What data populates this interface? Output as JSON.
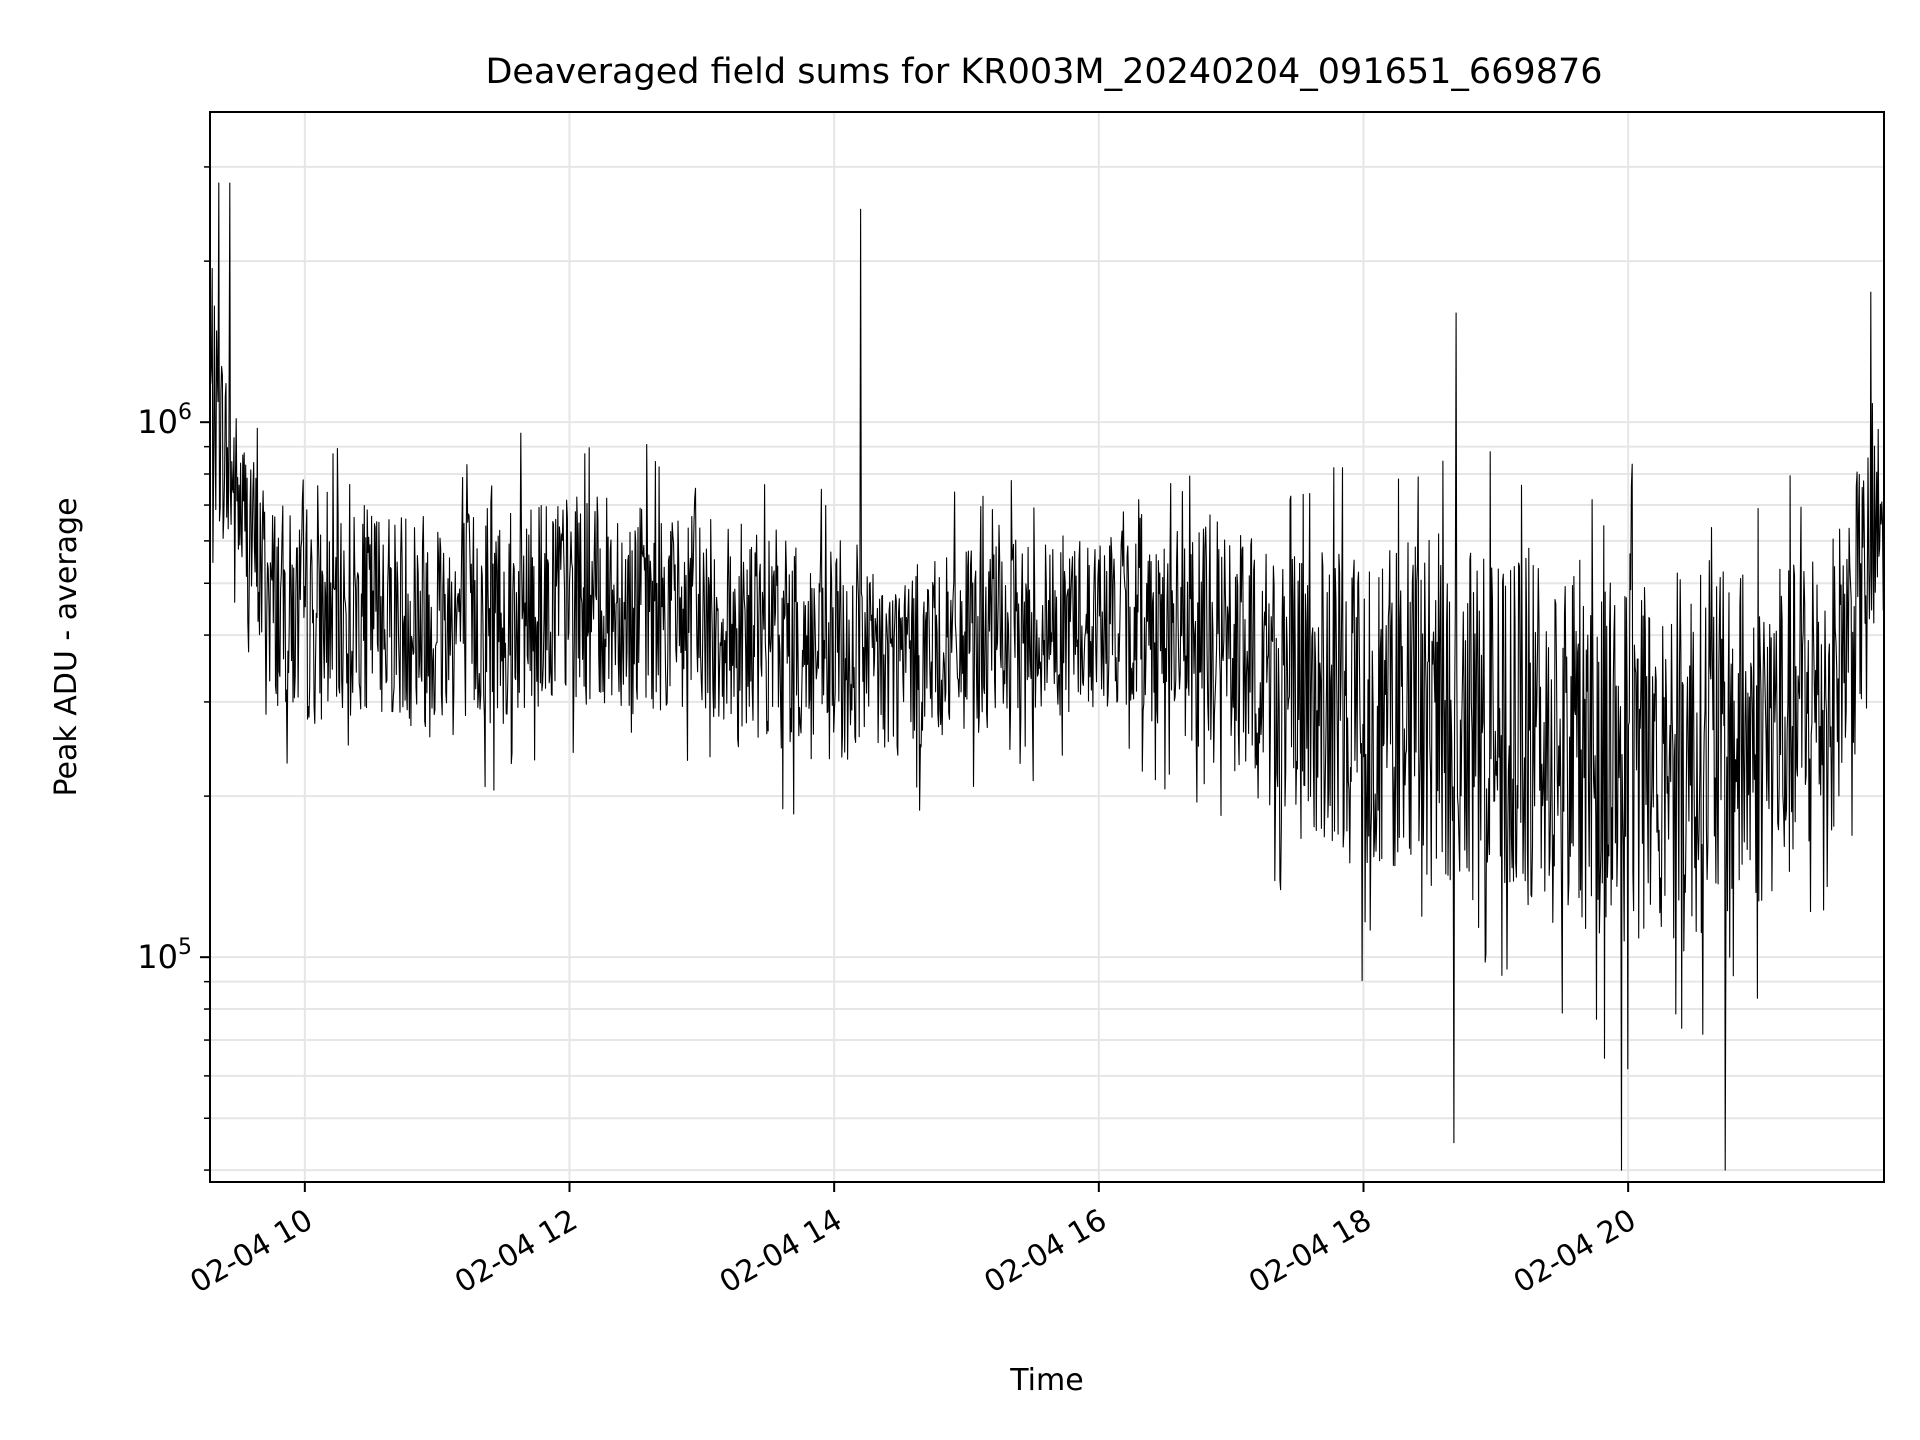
{
  "chart_data": {
    "type": "line",
    "title": "Deaveraged field sums for KR003M_20240204_091651_669876",
    "xlabel": "Time",
    "ylabel": "Peak ADU - average",
    "yscale": "log",
    "xlim": [
      "2024-02-04 09:17",
      "2024-02-04 21:56"
    ],
    "ylim": [
      38000,
      3800000
    ],
    "grid": true,
    "line_color": "#000000",
    "grid_color": "#e6e6e6",
    "x_tick_labels": [
      "02-04 10",
      "02-04 12",
      "02-04 14",
      "02-04 16",
      "02-04 18",
      "02-04 20"
    ],
    "x_tick_times": [
      "2024-02-04 10:00",
      "2024-02-04 12:00",
      "2024-02-04 14:00",
      "2024-02-04 16:00",
      "2024-02-04 18:00",
      "2024-02-04 20:00"
    ],
    "y_tick_values": [
      100000,
      1000000
    ],
    "y_tick_labels": [
      {
        "base": "10",
        "exp": "5"
      },
      {
        "base": "10",
        "exp": "6"
      }
    ],
    "series": [
      {
        "x": [
          "2024-02-04 09:17",
          "2024-02-04 09:30",
          "2024-02-04 09:45",
          "2024-02-04 10:00",
          "2024-02-04 10:30",
          "2024-02-04 11:00",
          "2024-02-04 11:30",
          "2024-02-04 12:00",
          "2024-02-04 12:30",
          "2024-02-04 13:00",
          "2024-02-04 13:30",
          "2024-02-04 14:00",
          "2024-02-04 14:30",
          "2024-02-04 15:00",
          "2024-02-04 15:30",
          "2024-02-04 16:00",
          "2024-02-04 16:30",
          "2024-02-04 17:00",
          "2024-02-04 17:30",
          "2024-02-04 18:00",
          "2024-02-04 18:30",
          "2024-02-04 19:00",
          "2024-02-04 19:30",
          "2024-02-04 20:00",
          "2024-02-04 20:30",
          "2024-02-04 21:00",
          "2024-02-04 21:30",
          "2024-02-04 21:56"
        ],
        "y_low": [
          500000,
          380000,
          220000,
          200000,
          220000,
          180000,
          200000,
          220000,
          220000,
          210000,
          190000,
          170000,
          180000,
          200000,
          210000,
          230000,
          200000,
          150000,
          110000,
          90000,
          80000,
          85000,
          65000,
          60000,
          65000,
          75000,
          100000,
          300000
        ],
        "y_high": [
          2500000,
          1300000,
          1000000,
          850000,
          950000,
          1000000,
          950000,
          1000000,
          950000,
          900000,
          800000,
          750000,
          700000,
          750000,
          800000,
          800000,
          850000,
          900000,
          850000,
          950000,
          1000000,
          900000,
          950000,
          1000000,
          900000,
          850000,
          900000,
          1500000
        ],
        "spikes": [
          {
            "x": "2024-02-04 09:21",
            "y": 2800000
          },
          {
            "x": "2024-02-04 09:26",
            "y": 2800000
          },
          {
            "x": "2024-02-04 14:12",
            "y": 2500000
          },
          {
            "x": "2024-02-04 18:42",
            "y": 1600000
          },
          {
            "x": "2024-02-04 21:50",
            "y": 1750000
          }
        ],
        "dips": [
          {
            "x": "2024-02-04 18:41",
            "y": 45000
          },
          {
            "x": "2024-02-04 19:57",
            "y": 40000
          },
          {
            "x": "2024-02-04 20:44",
            "y": 40000
          }
        ]
      }
    ]
  }
}
